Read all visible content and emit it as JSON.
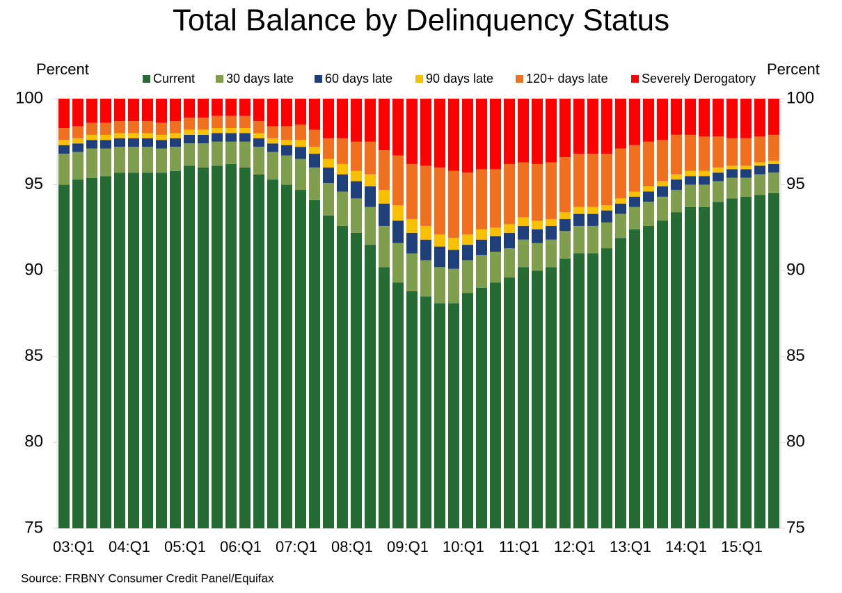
{
  "chart_data": {
    "type": "stacked_bar",
    "title": "Total Balance by Delinquency Status",
    "y_label": "Percent",
    "y2_label": "Percent",
    "source": "Source: FRBNY Consumer Credit Panel/Equifax",
    "categories": [
      "03:Q1",
      null,
      null,
      null,
      "04:Q1",
      null,
      null,
      null,
      "05:Q1",
      null,
      null,
      null,
      "06:Q1",
      null,
      null,
      null,
      "07:Q1",
      null,
      null,
      null,
      "08:Q1",
      null,
      null,
      null,
      "09:Q1",
      null,
      null,
      null,
      "10:Q1",
      null,
      null,
      null,
      "11:Q1",
      null,
      null,
      null,
      "12:Q1",
      null,
      null,
      null,
      "13:Q1",
      null,
      null,
      null,
      "14:Q1",
      null,
      null,
      null,
      "15:Q1",
      null,
      null,
      null
    ],
    "series": [
      {
        "name": "Current",
        "color": "#246b34",
        "values": [
          95.0,
          95.3,
          95.4,
          95.5,
          95.7,
          95.7,
          95.7,
          95.7,
          95.8,
          96.1,
          96.0,
          96.1,
          96.2,
          96.0,
          95.6,
          95.3,
          95.0,
          94.7,
          94.1,
          93.2,
          92.6,
          92.2,
          91.5,
          90.2,
          89.3,
          88.8,
          88.5,
          88.1,
          88.1,
          88.7,
          89.0,
          89.3,
          89.6,
          90.2,
          90.0,
          90.2,
          90.7,
          91.0,
          91.0,
          91.3,
          91.9,
          92.4,
          92.6,
          92.9,
          93.4,
          93.7,
          93.7,
          94.0,
          94.2,
          94.3,
          94.4,
          94.5
        ]
      },
      {
        "name": "30 days late",
        "color": "#7f9f4e",
        "values": [
          1.8,
          1.6,
          1.7,
          1.6,
          1.5,
          1.5,
          1.5,
          1.4,
          1.4,
          1.3,
          1.4,
          1.4,
          1.3,
          1.5,
          1.6,
          1.6,
          1.7,
          1.8,
          1.9,
          1.9,
          2.0,
          2.0,
          2.2,
          2.4,
          2.3,
          2.2,
          2.1,
          2.1,
          2.0,
          1.9,
          1.9,
          1.8,
          1.7,
          1.6,
          1.6,
          1.6,
          1.6,
          1.6,
          1.6,
          1.5,
          1.4,
          1.3,
          1.4,
          1.4,
          1.3,
          1.3,
          1.3,
          1.2,
          1.2,
          1.1,
          1.2,
          1.2
        ]
      },
      {
        "name": "60 days late",
        "color": "#1f3f7a",
        "values": [
          0.5,
          0.5,
          0.5,
          0.5,
          0.5,
          0.5,
          0.5,
          0.5,
          0.5,
          0.5,
          0.5,
          0.5,
          0.5,
          0.5,
          0.5,
          0.5,
          0.6,
          0.7,
          0.8,
          0.9,
          1.0,
          1.0,
          1.2,
          1.3,
          1.3,
          1.2,
          1.2,
          1.2,
          1.1,
          0.9,
          0.9,
          0.9,
          0.9,
          0.8,
          0.8,
          0.8,
          0.7,
          0.7,
          0.7,
          0.7,
          0.6,
          0.6,
          0.6,
          0.6,
          0.6,
          0.5,
          0.5,
          0.5,
          0.5,
          0.5,
          0.5,
          0.5
        ]
      },
      {
        "name": "90 days late",
        "color": "#f9c000",
        "values": [
          0.3,
          0.3,
          0.3,
          0.3,
          0.3,
          0.3,
          0.3,
          0.3,
          0.3,
          0.3,
          0.3,
          0.3,
          0.3,
          0.3,
          0.3,
          0.3,
          0.3,
          0.4,
          0.4,
          0.5,
          0.6,
          0.6,
          0.7,
          0.8,
          0.9,
          0.8,
          0.8,
          0.7,
          0.7,
          0.6,
          0.6,
          0.5,
          0.5,
          0.5,
          0.5,
          0.4,
          0.4,
          0.4,
          0.4,
          0.3,
          0.3,
          0.3,
          0.3,
          0.3,
          0.3,
          0.3,
          0.3,
          0.3,
          0.2,
          0.2,
          0.2,
          0.2
        ]
      },
      {
        "name": "120+ days late",
        "color": "#f07020",
        "values": [
          0.7,
          0.7,
          0.7,
          0.7,
          0.7,
          0.7,
          0.7,
          0.7,
          0.7,
          0.7,
          0.7,
          0.7,
          0.7,
          0.7,
          0.7,
          0.7,
          0.8,
          0.9,
          1.0,
          1.2,
          1.5,
          1.7,
          1.9,
          2.3,
          2.9,
          3.2,
          3.5,
          3.9,
          3.9,
          3.6,
          3.5,
          3.4,
          3.5,
          3.2,
          3.3,
          3.3,
          3.2,
          3.1,
          3.1,
          3.0,
          2.9,
          2.7,
          2.6,
          2.4,
          2.3,
          2.1,
          2.0,
          1.8,
          1.6,
          1.6,
          1.5,
          1.5
        ]
      },
      {
        "name": "Severely Derogatory",
        "color": "#ff0000",
        "values": [
          1.7,
          1.6,
          1.4,
          1.4,
          1.3,
          1.3,
          1.3,
          1.4,
          1.3,
          1.1,
          1.1,
          1.0,
          1.0,
          1.0,
          1.3,
          1.6,
          1.6,
          1.5,
          1.8,
          2.3,
          2.3,
          2.5,
          2.5,
          3.0,
          3.3,
          3.8,
          3.9,
          4.0,
          4.2,
          4.3,
          4.1,
          4.1,
          3.8,
          3.7,
          3.8,
          3.7,
          3.4,
          3.2,
          3.2,
          3.2,
          2.9,
          2.7,
          2.5,
          2.4,
          2.1,
          2.1,
          2.2,
          2.2,
          2.3,
          2.3,
          2.2,
          2.1
        ]
      }
    ],
    "ylim": [
      75,
      100
    ],
    "yticks": [
      75,
      80,
      85,
      90,
      95,
      100
    ],
    "y2lim": [
      75,
      100
    ],
    "y2ticks": [
      75,
      80,
      85,
      90,
      95,
      100
    ],
    "legend": "top"
  }
}
